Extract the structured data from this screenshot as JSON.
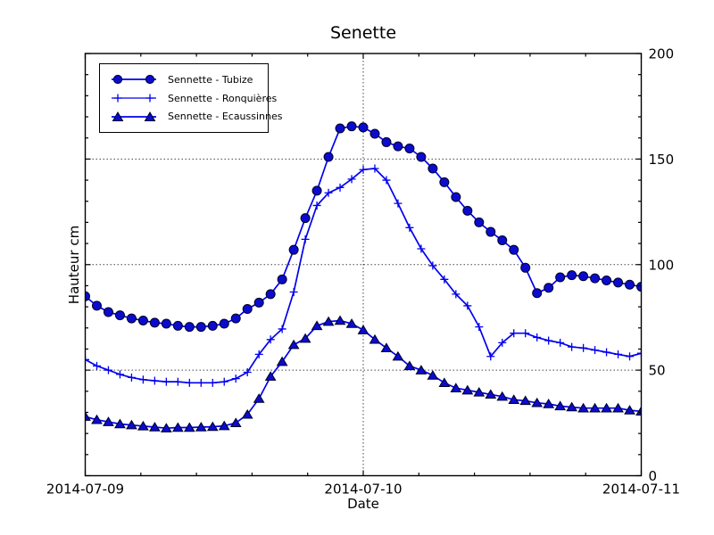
{
  "figure": {
    "title": "Senette",
    "xlabel": "Date",
    "ylabel": "Hauteur cm"
  },
  "legend": {
    "items": [
      {
        "label": "Sennette - Tubize",
        "marker": "circle-icon"
      },
      {
        "label": "Sennette - Ronquières",
        "marker": "plus-icon"
      },
      {
        "label": "Sennette - Ecaussinnes",
        "marker": "triangle-icon"
      }
    ]
  },
  "colors": {
    "line": "#0000ee",
    "marker_fill": "#0b0bd0",
    "marker_edge": "#000022",
    "grid": "#444444",
    "axis": "#000000",
    "background": "#ffffff"
  },
  "chart_data": {
    "type": "line",
    "title": "Senette",
    "xlabel": "Date",
    "ylabel": "Hauteur cm",
    "x_unit": "hours since 2014-07-09 00:00",
    "xlim": [
      0,
      48
    ],
    "ylim": [
      0,
      200
    ],
    "grid": true,
    "legend_position": "upper left",
    "yticks": [
      0,
      50,
      100,
      150,
      200
    ],
    "ytick_side": "right",
    "y_minor_interval": 10,
    "x_minor_interval": 4.8,
    "xticks": [
      {
        "pos": 0,
        "label": "2014-07-09"
      },
      {
        "pos": 24,
        "label": "2014-07-10"
      },
      {
        "pos": 48,
        "label": "2014-07-11"
      }
    ],
    "x": [
      0,
      1,
      2,
      3,
      4,
      5,
      6,
      7,
      8,
      9,
      10,
      11,
      12,
      13,
      14,
      15,
      16,
      17,
      18,
      19,
      20,
      21,
      22,
      23,
      24,
      25,
      26,
      27,
      28,
      29,
      30,
      31,
      32,
      33,
      34,
      35,
      36,
      37,
      38,
      39,
      40,
      41,
      42,
      43,
      44,
      45,
      46,
      47,
      48
    ],
    "series": [
      {
        "name": "Sennette - Tubize",
        "marker": "circle",
        "values": [
          85,
          80.5,
          77.5,
          76,
          74.5,
          73.5,
          72.5,
          72,
          71,
          70.5,
          70.5,
          71,
          72,
          74.5,
          79,
          82,
          86,
          93,
          107,
          122,
          135,
          151,
          164.5,
          165.5,
          165,
          162,
          158,
          156,
          155,
          151,
          145.5,
          139,
          132,
          125.5,
          120,
          115.5,
          111.5,
          107,
          98.5,
          86.5,
          89,
          94,
          95,
          94.5,
          93.5,
          92.5,
          91.5,
          90.5,
          89.5
        ]
      },
      {
        "name": "Sennette - Ronquières",
        "marker": "plus",
        "values": [
          55,
          52,
          50,
          48,
          46.5,
          45.5,
          45,
          44.5,
          44.5,
          44,
          44,
          44,
          44.5,
          46,
          49,
          57.5,
          64.5,
          69.5,
          87,
          112,
          128,
          134,
          136.5,
          140.5,
          145,
          145.5,
          140,
          129,
          117.5,
          107.5,
          99.5,
          93,
          86,
          80.5,
          70.5,
          56.5,
          63,
          67.5,
          67.5,
          65.5,
          64,
          63,
          61,
          60.5,
          59.5,
          58.5,
          57.5,
          56.5,
          58
        ]
      },
      {
        "name": "Sennette - Ecaussinnes",
        "marker": "triangle",
        "values": [
          28,
          26.5,
          25.5,
          24.5,
          24,
          23.5,
          23,
          22.5,
          22.8,
          22.8,
          23,
          23.2,
          23.6,
          25,
          29,
          36.5,
          47,
          54,
          62,
          65,
          71,
          73,
          73.5,
          72,
          69,
          64.5,
          60.5,
          56.5,
          52,
          50,
          47.5,
          44,
          41.5,
          40.5,
          39.5,
          38.5,
          37.5,
          36,
          35.5,
          34.5,
          34,
          33,
          32.5,
          32,
          32,
          32,
          32,
          31,
          30.5
        ]
      }
    ]
  }
}
